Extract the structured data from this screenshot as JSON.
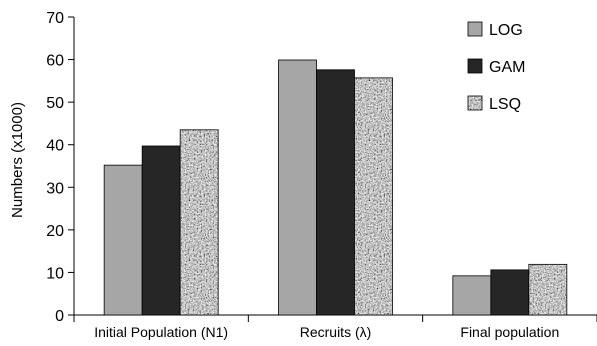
{
  "chart_data": {
    "type": "bar",
    "title": "",
    "xlabel": "",
    "ylabel": "Numbers (x1000)",
    "ylim": [
      0,
      70
    ],
    "yticks": [
      0,
      10,
      20,
      30,
      40,
      50,
      60,
      70
    ],
    "categories": [
      "Initial Population (N1)",
      "Recruits (λ)",
      "Final population"
    ],
    "series": [
      {
        "name": "LOG",
        "values": [
          35.2,
          59.9,
          9.2
        ],
        "color": "#a6a6a6",
        "pattern": "solid"
      },
      {
        "name": "GAM",
        "values": [
          39.7,
          57.6,
          10.6
        ],
        "color": "#262626",
        "pattern": "solid"
      },
      {
        "name": "LSQ",
        "values": [
          43.5,
          55.7,
          11.9
        ],
        "color": "#9a9a9a",
        "pattern": "granite"
      }
    ],
    "legend_position": "top-right",
    "grid": false
  }
}
